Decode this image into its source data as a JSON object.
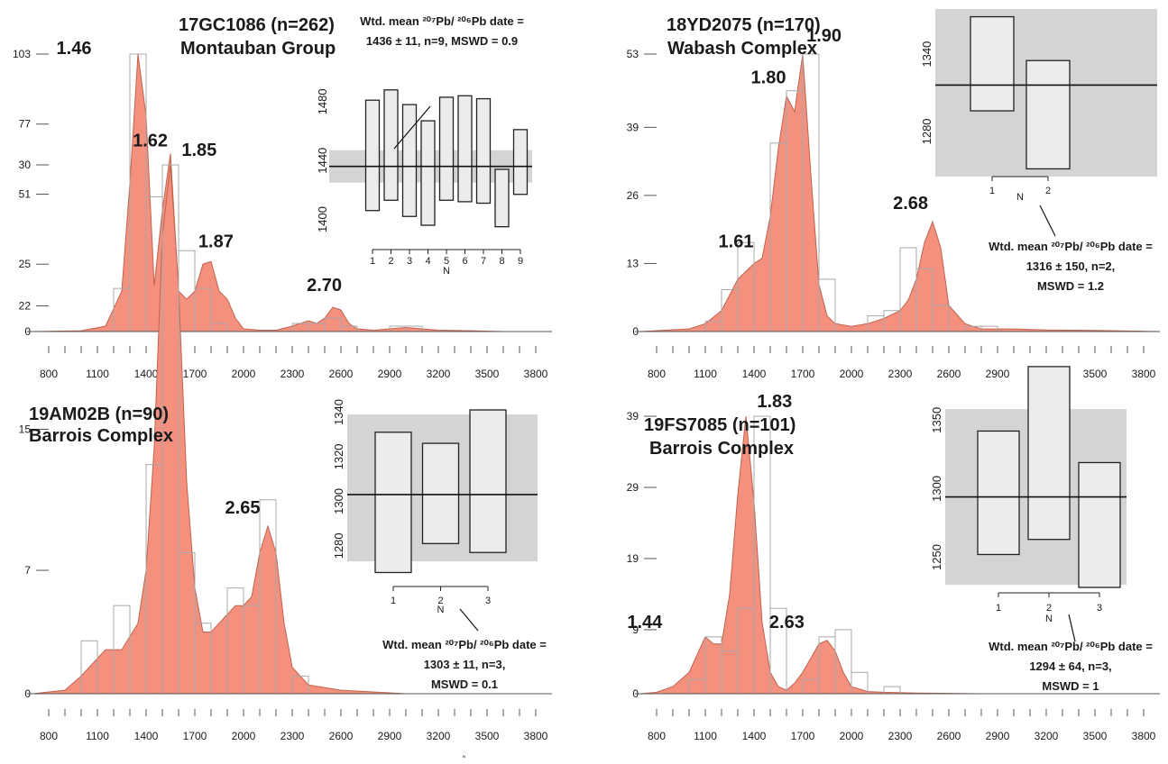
{
  "colors": {
    "kde_fill": "#f4907e",
    "kde_stroke": "#c0634f",
    "histogram_outline": "#a8a8a8",
    "inset_background": "#d4d4d4",
    "bar_fill": "#ececec",
    "text": "#1a1a1a"
  },
  "x_ticks": [
    "800",
    "1100",
    "1400",
    "1700",
    "2000",
    "2300",
    "2600",
    "2900",
    "3200",
    "3500",
    "3800"
  ],
  "stray_label": "N",
  "chart_data": [
    {
      "type": "area",
      "sample_label": "17GC1086 (n=262)",
      "unit_label": "Montauban Group",
      "xlim": [
        700,
        3900
      ],
      "ylim": [
        0,
        103
      ],
      "y_ticks": [
        "0",
        "25",
        "51",
        "77",
        "103"
      ],
      "histogram": {
        "bin_width": 100,
        "bins": [
          [
            1200,
            16
          ],
          [
            1300,
            103
          ],
          [
            1400,
            50
          ],
          [
            1500,
            17
          ],
          [
            1600,
            30
          ],
          [
            1700,
            16
          ],
          [
            1800,
            3
          ],
          [
            2300,
            3
          ],
          [
            2400,
            3
          ],
          [
            2500,
            5
          ],
          [
            2600,
            2
          ],
          [
            2900,
            2
          ],
          [
            3000,
            2
          ]
        ]
      },
      "kde": {
        "x": [
          700,
          1000,
          1150,
          1250,
          1300,
          1350,
          1400,
          1450,
          1500,
          1550,
          1600,
          1650,
          1700,
          1750,
          1800,
          1850,
          1900,
          1950,
          2000,
          2100,
          2200,
          2300,
          2350,
          2400,
          2450,
          2500,
          2550,
          2600,
          2650,
          2700,
          2800,
          2900,
          3000,
          3100,
          3200,
          3400,
          3600,
          3900
        ],
        "y": [
          0,
          0.3,
          2,
          15,
          55,
          103,
          80,
          17,
          45,
          66,
          15,
          12,
          15,
          25,
          26,
          15,
          12,
          5,
          1,
          0.5,
          0.5,
          2,
          3,
          4,
          3,
          5,
          9,
          8,
          3,
          1,
          0.5,
          1,
          1.5,
          1,
          0.5,
          0.3,
          0,
          0
        ]
      },
      "peak_labels": [
        {
          "x": 1300,
          "y": 103,
          "text": "1.46"
        },
        {
          "x": 1470,
          "y": 66,
          "text": "1.62"
        },
        {
          "x": 1830,
          "y": 26,
          "text": "1.87"
        },
        {
          "x": 2720,
          "y": 9,
          "text": "2.70"
        }
      ],
      "inset": {
        "ylim": [
          1385,
          1505
        ],
        "y_ticks": [
          "1400",
          "1440",
          "1480"
        ],
        "x_ticks": [
          "1",
          "2",
          "3",
          "4",
          "5",
          "6",
          "7",
          "8",
          "9"
        ],
        "xlabel": "N",
        "mean": 1436,
        "band": [
          1425,
          1447
        ],
        "bars": [
          [
            1406,
            1481
          ],
          [
            1413,
            1488
          ],
          [
            1402,
            1478
          ],
          [
            1396,
            1467
          ],
          [
            1413,
            1483
          ],
          [
            1412,
            1484
          ],
          [
            1411,
            1482
          ],
          [
            1395,
            1434
          ],
          [
            1417,
            1461
          ]
        ]
      },
      "annotation": [
        "Wtd. mean ²⁰⁷Pb/ ²⁰⁶Pb date =",
        "1436 ± 11, n=9, MSWD = 0.9"
      ]
    },
    {
      "type": "area",
      "sample_label": "18YD2075 (n=170)",
      "unit_label": "Wabash Complex",
      "xlim": [
        700,
        3900
      ],
      "ylim": [
        0,
        53
      ],
      "y_ticks": [
        "0",
        "13",
        "26",
        "39",
        "53"
      ],
      "histogram": {
        "bin_width": 100,
        "bins": [
          [
            1100,
            2
          ],
          [
            1200,
            8
          ],
          [
            1300,
            17
          ],
          [
            1500,
            36
          ],
          [
            1600,
            46
          ],
          [
            1700,
            53
          ],
          [
            1800,
            10
          ],
          [
            2100,
            3
          ],
          [
            2200,
            4
          ],
          [
            2300,
            16
          ],
          [
            2400,
            12
          ],
          [
            2500,
            5
          ],
          [
            2700,
            1
          ],
          [
            2800,
            1
          ]
        ]
      },
      "kde": {
        "x": [
          700,
          1000,
          1100,
          1200,
          1300,
          1400,
          1450,
          1500,
          1550,
          1600,
          1650,
          1700,
          1750,
          1800,
          1850,
          1900,
          2000,
          2100,
          2200,
          2300,
          2350,
          2400,
          2450,
          2500,
          2550,
          2600,
          2700,
          2800,
          2900,
          3000,
          3200,
          3500,
          3900
        ],
        "y": [
          0,
          0.5,
          1.5,
          4,
          10,
          13,
          14,
          22,
          35,
          45,
          42,
          53,
          30,
          9,
          3,
          1.5,
          1,
          1.5,
          2.5,
          4,
          6,
          10,
          17,
          21,
          16,
          5,
          1.5,
          0.5,
          0.5,
          0.5,
          0.3,
          0.2,
          0
        ],
        "note": "x offsets in ages"
      },
      "peak_labels": [
        {
          "x": 1400,
          "y": 14,
          "text": "1.61"
        },
        {
          "x": 1600,
          "y": 45,
          "text": "1.80"
        },
        {
          "x": 1720,
          "y": 53,
          "text": "1.90"
        },
        {
          "x": 2420,
          "y": 21,
          "text": "2.68"
        }
      ],
      "inset": {
        "ylim": [
          1245,
          1375
        ],
        "y_ticks": [
          "1280",
          "1340"
        ],
        "x_ticks": [
          "1",
          "2"
        ],
        "xlabel": "N",
        "mean": 1316,
        "band": [
          1245,
          1375
        ],
        "bars": [
          [
            1296,
            1369
          ],
          [
            1251,
            1335
          ]
        ]
      },
      "annotation": [
        "Wtd. mean ²⁰⁷Pb/ ²⁰⁶Pb date =",
        "1316 ± 150, n=2,",
        "MSWD = 1.2"
      ]
    },
    {
      "type": "area",
      "sample_label": "19AM02B (n=90)",
      "unit_label": "Barrois Complex",
      "xlim": [
        700,
        3900
      ],
      "ylim": [
        0,
        30
      ],
      "y_ticks": [
        "0",
        "7",
        "15",
        "22",
        "30"
      ],
      "histogram": {
        "bin_width": 100,
        "bins": [
          [
            1000,
            3
          ],
          [
            1200,
            5
          ],
          [
            1400,
            13
          ],
          [
            1500,
            30
          ],
          [
            1600,
            8
          ],
          [
            1700,
            4
          ],
          [
            1900,
            6
          ],
          [
            2000,
            5
          ],
          [
            2100,
            11
          ],
          [
            2300,
            1
          ]
        ]
      },
      "kde": {
        "x": [
          700,
          900,
          1000,
          1100,
          1150,
          1250,
          1350,
          1400,
          1450,
          1500,
          1550,
          1600,
          1650,
          1700,
          1750,
          1800,
          1850,
          1900,
          1950,
          2000,
          2050,
          2100,
          2150,
          2200,
          2250,
          2300,
          2400,
          2600,
          3000,
          3900
        ],
        "y": [
          0,
          0.2,
          1,
          2,
          2.5,
          2.5,
          4,
          7,
          14,
          26,
          30,
          23,
          12,
          6,
          3.5,
          3.5,
          4,
          4.5,
          5,
          5,
          5.5,
          8,
          9.5,
          8,
          4,
          1.5,
          0.5,
          0.2,
          0,
          0
        ],
        "note": ""
      },
      "peak_labels": [
        {
          "x": 1560,
          "y": 30,
          "text": "1.85"
        },
        {
          "x": 2150,
          "y": 9.5,
          "text": "2.65"
        }
      ],
      "inset": {
        "ylim": [
          1269,
          1341
        ],
        "y_ticks": [
          "1280",
          "1300",
          "1320",
          "1340"
        ],
        "x_ticks": [
          "1",
          "2",
          "3"
        ],
        "xlabel": "N",
        "mean": 1303,
        "band": [
          1273,
          1339
        ],
        "bars": [
          [
            1268,
            1331
          ],
          [
            1281,
            1326
          ],
          [
            1277,
            1341
          ]
        ]
      },
      "annotation": [
        "Wtd. mean ²⁰⁷Pb/ ²⁰⁶Pb date =",
        "1303 ± 11, n=3,",
        "MSWD = 0.1"
      ]
    },
    {
      "type": "area",
      "sample_label": "19FS7085 (n=101)",
      "unit_label": "Barrois Complex",
      "xlim": [
        700,
        3900
      ],
      "ylim": [
        0,
        39
      ],
      "y_ticks": [
        "0",
        "9",
        "19",
        "29",
        "39"
      ],
      "histogram": {
        "bin_width": 100,
        "bins": [
          [
            1000,
            2
          ],
          [
            1100,
            8
          ],
          [
            1200,
            6
          ],
          [
            1300,
            12
          ],
          [
            1400,
            39
          ],
          [
            1500,
            12
          ],
          [
            1700,
            2
          ],
          [
            1800,
            8
          ],
          [
            1900,
            9
          ],
          [
            2000,
            3
          ],
          [
            2200,
            1
          ]
        ]
      },
      "kde": {
        "x": [
          700,
          800,
          900,
          1000,
          1050,
          1100,
          1150,
          1200,
          1250,
          1300,
          1350,
          1400,
          1450,
          1500,
          1550,
          1600,
          1650,
          1700,
          1750,
          1800,
          1850,
          1900,
          1950,
          2000,
          2100,
          2200,
          2400,
          2800,
          3900
        ],
        "y": [
          0,
          0.2,
          1,
          3,
          5.5,
          8,
          7,
          7,
          14,
          28,
          39,
          27,
          10,
          3,
          1,
          0.5,
          1.5,
          3,
          5,
          7,
          7.5,
          6,
          3,
          1,
          0.3,
          0.2,
          0.1,
          0,
          0
        ],
        "note": ""
      },
      "peak_labels": [
        {
          "x": 1060,
          "y": 8,
          "text": "1.44"
        },
        {
          "x": 1360,
          "y": 39,
          "text": "1.83"
        },
        {
          "x": 1880,
          "y": 7.5,
          "text": "2.63"
        }
      ],
      "inset": {
        "ylim": [
          1228,
          1362
        ],
        "y_ticks": [
          "1250",
          "1300",
          "1350"
        ],
        "x_ticks": [
          "1",
          "2",
          "3"
        ],
        "xlabel": "N",
        "mean": 1294,
        "band": [
          1230,
          1358
        ],
        "bars": [
          [
            1252,
            1342
          ],
          [
            1263,
            1389
          ],
          [
            1228,
            1319
          ]
        ]
      },
      "annotation": [
        "Wtd. mean ²⁰⁷Pb/ ²⁰⁶Pb date =",
        "1294 ± 64, n=3,",
        "MSWD = 1"
      ]
    }
  ]
}
